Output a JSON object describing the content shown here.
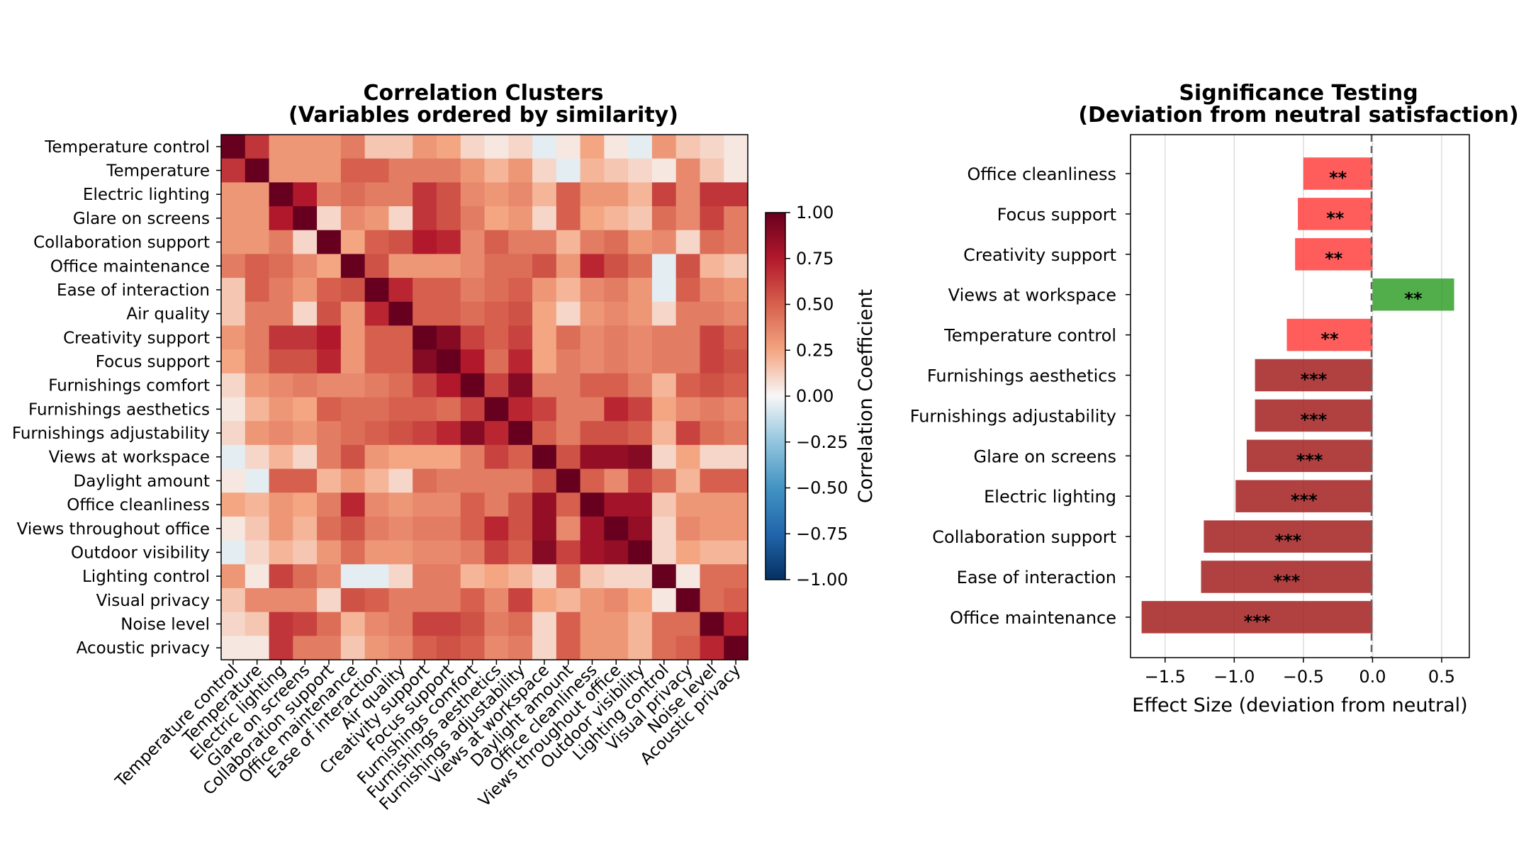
{
  "chart_data": [
    {
      "type": "heatmap",
      "title": "Correlation Clusters\n(Variables ordered by similarity)",
      "labels": [
        "Temperature control",
        "Temperature",
        "Electric lighting",
        "Glare on screens",
        "Collaboration support",
        "Office maintenance",
        "Ease of interaction",
        "Air quality",
        "Creativity support",
        "Focus support",
        "Furnishings comfort",
        "Furnishings aesthetics",
        "Furnishings adjustability",
        "Views at workspace",
        "Daylight amount",
        "Office cleanliness",
        "Views throughout office",
        "Outdoor visibility",
        "Lighting control",
        "Visual privacy",
        "Noise level",
        "Acoustic privacy"
      ],
      "matrix": [
        [
          1.0,
          0.65,
          0.3,
          0.3,
          0.3,
          0.4,
          0.15,
          0.15,
          0.3,
          0.25,
          0.1,
          0.05,
          0.1,
          -0.05,
          0.05,
          0.25,
          0.05,
          -0.05,
          0.3,
          0.15,
          0.1,
          0.05
        ],
        [
          0.65,
          1.0,
          0.3,
          0.3,
          0.3,
          0.5,
          0.5,
          0.4,
          0.4,
          0.4,
          0.3,
          0.2,
          0.3,
          0.1,
          -0.05,
          0.2,
          0.15,
          0.1,
          0.05,
          0.35,
          0.15,
          0.05
        ],
        [
          0.3,
          0.3,
          1.0,
          0.75,
          0.4,
          0.45,
          0.4,
          0.4,
          0.65,
          0.55,
          0.35,
          0.3,
          0.35,
          0.2,
          0.5,
          0.3,
          0.3,
          0.2,
          0.6,
          0.35,
          0.65,
          0.65
        ],
        [
          0.3,
          0.3,
          0.75,
          1.0,
          0.1,
          0.35,
          0.3,
          0.1,
          0.65,
          0.55,
          0.4,
          0.25,
          0.3,
          0.1,
          0.5,
          0.25,
          0.2,
          0.15,
          0.45,
          0.35,
          0.6,
          0.4
        ],
        [
          0.3,
          0.3,
          0.4,
          0.1,
          1.0,
          0.25,
          0.5,
          0.55,
          0.75,
          0.7,
          0.35,
          0.5,
          0.4,
          0.4,
          0.2,
          0.4,
          0.45,
          0.3,
          0.35,
          0.1,
          0.45,
          0.4
        ],
        [
          0.4,
          0.5,
          0.45,
          0.35,
          0.25,
          1.0,
          0.55,
          0.3,
          0.3,
          0.3,
          0.35,
          0.45,
          0.45,
          0.55,
          0.3,
          0.7,
          0.55,
          0.45,
          -0.05,
          0.55,
          0.2,
          0.15
        ],
        [
          0.15,
          0.5,
          0.4,
          0.3,
          0.5,
          0.55,
          1.0,
          0.7,
          0.5,
          0.5,
          0.4,
          0.45,
          0.5,
          0.3,
          0.2,
          0.35,
          0.4,
          0.3,
          -0.05,
          0.5,
          0.35,
          0.3
        ],
        [
          0.15,
          0.4,
          0.4,
          0.1,
          0.55,
          0.3,
          0.7,
          1.0,
          0.5,
          0.5,
          0.45,
          0.5,
          0.55,
          0.25,
          0.1,
          0.3,
          0.35,
          0.3,
          0.1,
          0.4,
          0.4,
          0.35
        ],
        [
          0.3,
          0.4,
          0.65,
          0.65,
          0.75,
          0.3,
          0.5,
          0.5,
          1.0,
          0.9,
          0.6,
          0.5,
          0.6,
          0.25,
          0.45,
          0.35,
          0.4,
          0.35,
          0.4,
          0.4,
          0.6,
          0.5
        ],
        [
          0.25,
          0.4,
          0.55,
          0.55,
          0.7,
          0.3,
          0.5,
          0.5,
          0.9,
          1.0,
          0.75,
          0.45,
          0.7,
          0.25,
          0.4,
          0.35,
          0.4,
          0.35,
          0.4,
          0.4,
          0.6,
          0.55
        ],
        [
          0.1,
          0.3,
          0.35,
          0.4,
          0.35,
          0.35,
          0.4,
          0.45,
          0.6,
          0.75,
          1.0,
          0.6,
          0.9,
          0.4,
          0.4,
          0.5,
          0.5,
          0.4,
          0.2,
          0.5,
          0.55,
          0.5
        ],
        [
          0.05,
          0.2,
          0.3,
          0.25,
          0.5,
          0.45,
          0.45,
          0.5,
          0.5,
          0.45,
          0.6,
          1.0,
          0.7,
          0.6,
          0.4,
          0.4,
          0.7,
          0.6,
          0.25,
          0.35,
          0.4,
          0.35
        ],
        [
          0.1,
          0.3,
          0.35,
          0.3,
          0.4,
          0.45,
          0.5,
          0.55,
          0.6,
          0.7,
          0.9,
          0.7,
          1.0,
          0.5,
          0.4,
          0.55,
          0.55,
          0.5,
          0.2,
          0.6,
          0.45,
          0.4
        ],
        [
          -0.05,
          0.1,
          0.2,
          0.1,
          0.4,
          0.55,
          0.3,
          0.25,
          0.25,
          0.25,
          0.4,
          0.6,
          0.5,
          1.0,
          0.55,
          0.85,
          0.85,
          0.9,
          0.1,
          0.25,
          0.1,
          0.1
        ],
        [
          0.05,
          -0.05,
          0.5,
          0.5,
          0.2,
          0.3,
          0.2,
          0.1,
          0.45,
          0.4,
          0.4,
          0.4,
          0.4,
          0.55,
          1.0,
          0.5,
          0.35,
          0.6,
          0.45,
          0.2,
          0.5,
          0.5
        ],
        [
          0.25,
          0.2,
          0.3,
          0.25,
          0.4,
          0.7,
          0.35,
          0.3,
          0.35,
          0.35,
          0.5,
          0.4,
          0.55,
          0.85,
          0.5,
          1.0,
          0.8,
          0.8,
          0.15,
          0.3,
          0.3,
          0.3
        ],
        [
          0.05,
          0.15,
          0.3,
          0.2,
          0.45,
          0.55,
          0.4,
          0.35,
          0.4,
          0.4,
          0.5,
          0.7,
          0.55,
          0.85,
          0.35,
          0.8,
          1.0,
          0.85,
          0.1,
          0.35,
          0.3,
          0.3
        ],
        [
          -0.05,
          0.1,
          0.2,
          0.15,
          0.3,
          0.45,
          0.3,
          0.3,
          0.35,
          0.35,
          0.4,
          0.6,
          0.5,
          0.9,
          0.6,
          0.8,
          0.85,
          1.0,
          0.1,
          0.25,
          0.2,
          0.2
        ],
        [
          0.3,
          0.05,
          0.6,
          0.45,
          0.35,
          -0.05,
          -0.05,
          0.1,
          0.4,
          0.4,
          0.2,
          0.25,
          0.2,
          0.1,
          0.45,
          0.15,
          0.1,
          0.1,
          1.0,
          0.05,
          0.45,
          0.45
        ],
        [
          0.15,
          0.35,
          0.35,
          0.35,
          0.1,
          0.55,
          0.5,
          0.4,
          0.4,
          0.4,
          0.5,
          0.35,
          0.6,
          0.25,
          0.2,
          0.3,
          0.35,
          0.25,
          0.05,
          1.0,
          0.45,
          0.5
        ],
        [
          0.1,
          0.15,
          0.65,
          0.6,
          0.45,
          0.2,
          0.35,
          0.4,
          0.6,
          0.6,
          0.55,
          0.4,
          0.45,
          0.1,
          0.5,
          0.3,
          0.3,
          0.2,
          0.45,
          0.45,
          1.0,
          0.7
        ],
        [
          0.05,
          0.05,
          0.65,
          0.4,
          0.4,
          0.15,
          0.3,
          0.35,
          0.5,
          0.55,
          0.5,
          0.35,
          0.4,
          0.1,
          0.5,
          0.3,
          0.3,
          0.2,
          0.45,
          0.5,
          0.7,
          1.0
        ]
      ],
      "colorbar": {
        "label": "Correlation Coefficient",
        "ticks": [
          "1.00",
          "0.75",
          "0.50",
          "0.25",
          "0.00",
          "−0.25",
          "−0.50",
          "−0.75",
          "−1.00"
        ],
        "range": [
          -1,
          1
        ],
        "colormap": "RdBu_r"
      }
    },
    {
      "type": "bar",
      "orientation": "horizontal",
      "title": "Significance Testing\n(Deviation from neutral satisfaction)",
      "xlabel": "Effect Size (deviation from neutral)",
      "xlim": [
        -1.75,
        0.7
      ],
      "xticks": [
        "−1.5",
        "−1.0",
        "−0.5",
        "0.0",
        "0.5"
      ],
      "categories": [
        "Office cleanliness",
        "Focus support",
        "Creativity support",
        "Views at workspace",
        "Temperature control",
        "Furnishings aesthetics",
        "Furnishings adjustability",
        "Glare on screens",
        "Electric lighting",
        "Collaboration support",
        "Ease of interaction",
        "Office maintenance"
      ],
      "values": [
        -0.5,
        -0.54,
        -0.56,
        0.59,
        -0.62,
        -0.85,
        -0.85,
        -0.91,
        -0.99,
        -1.22,
        -1.24,
        -1.67
      ],
      "significance": [
        "**",
        "**",
        "**",
        "**",
        "**",
        "***",
        "***",
        "***",
        "***",
        "***",
        "***",
        "***"
      ],
      "colors": {
        "negative_moderate": "#ff4040",
        "positive": "#33a02c",
        "negative_strong": "#a31f1f"
      }
    }
  ]
}
